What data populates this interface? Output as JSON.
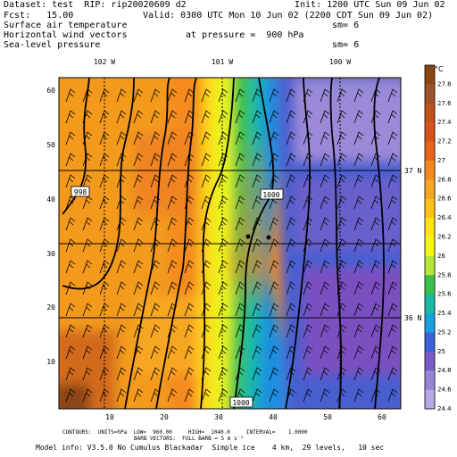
{
  "header": {
    "line1_left": "Dataset: test  RIP: rip20020609 d2",
    "line1_right": "Init: 1200 UTC Sun 09 Jun 02",
    "line2_left": "Fcst:   15.00",
    "line2_right": "Valid: 0300 UTC Mon 10 Jun 02 (2200 CDT Sun 09 Jun 02)",
    "line3_left": "Surface air temperature",
    "line3_right": "sm= 6",
    "line4_left": "Horizontal wind vectors",
    "line4_mid": "at pressure =  900 hPa",
    "line5_left": "Sea-level pressure",
    "line5_right": "sm= 6"
  },
  "map": {
    "lon_labels": [
      "102 W",
      "101 W",
      "100 W"
    ],
    "lat_labels": [
      "37 N",
      "36 N"
    ],
    "x_ticks": [
      "10",
      "20",
      "30",
      "40",
      "50",
      "60"
    ],
    "y_ticks": [
      "10",
      "20",
      "30",
      "40",
      "50",
      "60"
    ],
    "contour_labels": [
      "998",
      "1000",
      "1000"
    ]
  },
  "colorbar": {
    "unit": "°C",
    "labels": [
      "27.8",
      "27.6",
      "27.4",
      "27.2",
      "27",
      "26.8",
      "26.6",
      "26.4",
      "26.2",
      "26",
      "25.8",
      "25.6",
      "25.4",
      "25.2",
      "25",
      "24.8",
      "24.6",
      "24.4"
    ],
    "colors": [
      "#8b4513",
      "#a0522d",
      "#c0521c",
      "#d5521a",
      "#e8641c",
      "#f38a1f",
      "#f5a623",
      "#ffc21a",
      "#ffe31a",
      "#f2f51a",
      "#b6e53a",
      "#39c14c",
      "#19b9a0",
      "#18a0e0",
      "#3e63d8",
      "#7a5cc8",
      "#9a86d8",
      "#b8a8e4"
    ]
  },
  "footer": {
    "line1": "CONTOURS:  UNITS=hPa  LOW=  960.00     HIGH=  1040.0     INTERVAL=    1.0000",
    "line2": "BARB VECTORS:  FULL BARB = 5 m s⁻¹",
    "line3": "Model info: V3.5.0 No Cumulus Blackadar  Simple ice    4 km,  29 levels,   10 sec"
  }
}
